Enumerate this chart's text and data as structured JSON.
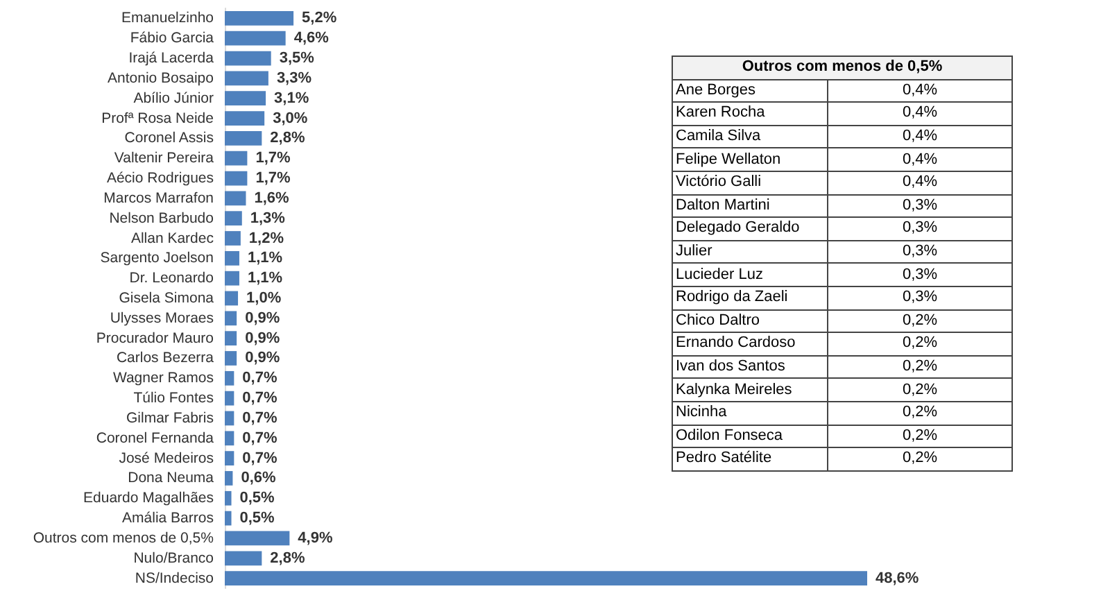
{
  "chart_data": [
    {
      "type": "bar",
      "orientation": "horizontal",
      "tick_labels": "y",
      "color": "#4f81bd",
      "categories": [
        "Emanuelzinho",
        "Fábio Garcia",
        "Irajá Lacerda",
        "Antonio Bosaipo",
        "Abílio Júnior",
        "Profª Rosa Neide",
        "Coronel Assis",
        "Valtenir Pereira",
        "Aécio Rodrigues",
        "Marcos Marrafon",
        "Nelson Barbudo",
        "Allan Kardec",
        "Sargento Joelson",
        "Dr. Leonardo",
        "Gisela Simona",
        "Ulysses Moraes",
        "Procurador Mauro",
        "Carlos Bezerra",
        "Wagner Ramos",
        "Túlio Fontes",
        "Gilmar Fabris",
        "Coronel Fernanda",
        "José Medeiros",
        "Dona Neuma",
        "Eduardo Magalhães",
        "Amália Barros",
        "Outros com menos de 0,5%",
        "Nulo/Branco",
        "NS/Indeciso"
      ],
      "values": [
        5.2,
        4.6,
        3.5,
        3.3,
        3.1,
        3.0,
        2.8,
        1.7,
        1.7,
        1.6,
        1.3,
        1.2,
        1.1,
        1.1,
        1.0,
        0.9,
        0.9,
        0.9,
        0.7,
        0.7,
        0.7,
        0.7,
        0.7,
        0.6,
        0.5,
        0.5,
        4.9,
        2.8,
        48.6
      ],
      "value_labels": [
        "5,2%",
        "4,6%",
        "3,5%",
        "3,3%",
        "3,1%",
        "3,0%",
        "2,8%",
        "1,7%",
        "1,7%",
        "1,6%",
        "1,3%",
        "1,2%",
        "1,1%",
        "1,1%",
        "1,0%",
        "0,9%",
        "0,9%",
        "0,9%",
        "0,7%",
        "0,7%",
        "0,7%",
        "0,7%",
        "0,7%",
        "0,6%",
        "0,5%",
        "0,5%",
        "4,9%",
        "2,8%",
        "48,6%"
      ]
    },
    {
      "type": "other",
      "title": "Outros com menos de 0,5%",
      "categories": [
        "Ane Borges",
        "Karen Rocha",
        "Camila Silva",
        "Felipe Wellaton",
        "Victório Galli",
        "Dalton Martini",
        "Delegado Geraldo",
        "Julier",
        "Lucieder Luz",
        "Rodrigo da Zaeli",
        "Chico Daltro",
        "Ernando Cardoso",
        "Ivan dos Santos",
        "Kalynka Meireles",
        "Nicinha",
        "Odilon Fonseca",
        "Pedro Satélite"
      ],
      "value_labels": [
        "0,4%",
        "0,4%",
        "0,4%",
        "0,4%",
        "0,4%",
        "0,3%",
        "0,3%",
        "0,3%",
        "0,3%",
        "0,3%",
        "0,2%",
        "0,2%",
        "0,2%",
        "0,2%",
        "0,2%",
        "0,2%",
        "0,2%"
      ]
    }
  ]
}
